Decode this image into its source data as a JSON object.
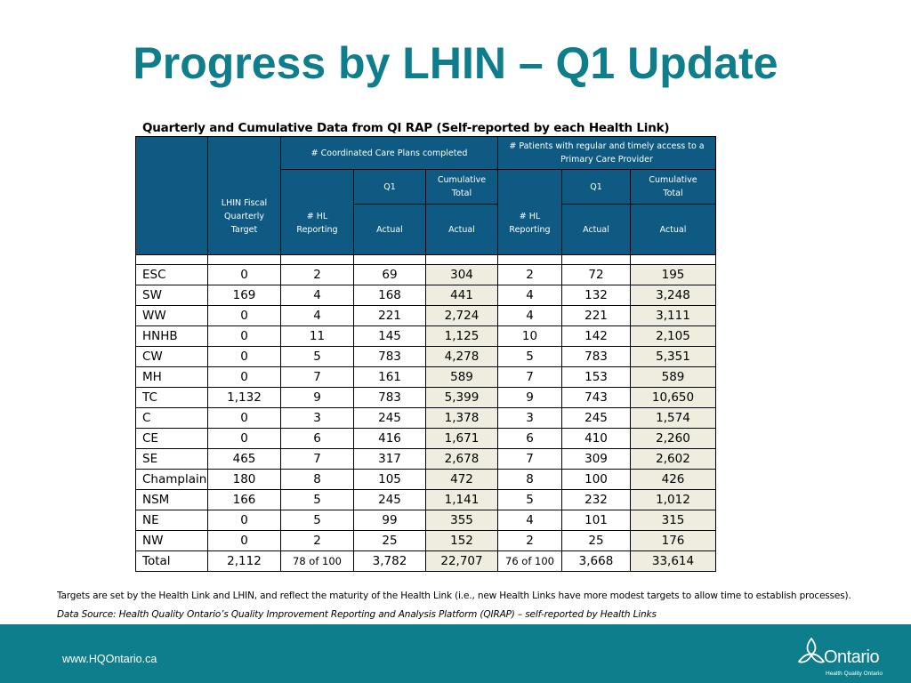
{
  "title": "Progress by LHIN – Q1 Update",
  "caption": "Quarterly and Cumulative Data from QI RAP (Self-reported by each Health Link)",
  "header": {
    "group_ccp": "# Coordinated Care Plans completed",
    "group_patients_1": "# Patients with regular and timely access to a",
    "group_patients_2": "Primary Care Provider",
    "target_1": "LHIN Fiscal",
    "target_2": "Quarterly",
    "target_3": "Target",
    "hl_1": "# HL",
    "hl_2": "Reporting",
    "q1": "Q1",
    "cum_1": "Cumulative",
    "cum_2": "Total",
    "actual": "Actual"
  },
  "rows": [
    {
      "name": "ESC",
      "target": "0",
      "hl1": "2",
      "q1a": "69",
      "cum1": "304",
      "hl2": "2",
      "q1b": "72",
      "cum2": "195"
    },
    {
      "name": "SW",
      "target": "169",
      "hl1": "4",
      "q1a": "168",
      "cum1": "441",
      "hl2": "4",
      "q1b": "132",
      "cum2": "3,248"
    },
    {
      "name": "WW",
      "target": "0",
      "hl1": "4",
      "q1a": "221",
      "cum1": "2,724",
      "hl2": "4",
      "q1b": "221",
      "cum2": "3,111"
    },
    {
      "name": "HNHB",
      "target": "0",
      "hl1": "11",
      "q1a": "145",
      "cum1": "1,125",
      "hl2": "10",
      "q1b": "142",
      "cum2": "2,105"
    },
    {
      "name": "CW",
      "target": "0",
      "hl1": "5",
      "q1a": "783",
      "cum1": "4,278",
      "hl2": "5",
      "q1b": "783",
      "cum2": "5,351"
    },
    {
      "name": "MH",
      "target": "0",
      "hl1": "7",
      "q1a": "161",
      "cum1": "589",
      "hl2": "7",
      "q1b": "153",
      "cum2": "589"
    },
    {
      "name": "TC",
      "target": "1,132",
      "hl1": "9",
      "q1a": "783",
      "cum1": "5,399",
      "hl2": "9",
      "q1b": "743",
      "cum2": "10,650"
    },
    {
      "name": "C",
      "target": "0",
      "hl1": "3",
      "q1a": "245",
      "cum1": "1,378",
      "hl2": "3",
      "q1b": "245",
      "cum2": "1,574"
    },
    {
      "name": "CE",
      "target": "0",
      "hl1": "6",
      "q1a": "416",
      "cum1": "1,671",
      "hl2": "6",
      "q1b": "410",
      "cum2": "2,260"
    },
    {
      "name": "SE",
      "target": "465",
      "hl1": "7",
      "q1a": "317",
      "cum1": "2,678",
      "hl2": "7",
      "q1b": "309",
      "cum2": "2,602"
    },
    {
      "name": "Champlain",
      "target": "180",
      "hl1": "8",
      "q1a": "105",
      "cum1": "472",
      "hl2": "8",
      "q1b": "100",
      "cum2": "426"
    },
    {
      "name": "NSM",
      "target": "166",
      "hl1": "5",
      "q1a": "245",
      "cum1": "1,141",
      "hl2": "5",
      "q1b": "232",
      "cum2": "1,012"
    },
    {
      "name": "NE",
      "target": "0",
      "hl1": "5",
      "q1a": "99",
      "cum1": "355",
      "hl2": "4",
      "q1b": "101",
      "cum2": "315"
    },
    {
      "name": "NW",
      "target": "0",
      "hl1": "2",
      "q1a": "25",
      "cum1": "152",
      "hl2": "2",
      "q1b": "25",
      "cum2": "176"
    },
    {
      "name": "Total",
      "target": "2,112",
      "hl1": "78 of 100",
      "q1a": "3,782",
      "cum1": "22,707",
      "hl2": "76 of 100",
      "q1b": "3,668",
      "cum2": "33,614"
    }
  ],
  "note": "Targets are set by the Health Link and LHIN, and reflect the maturity of the Health Link (i.e., new Health Links have more modest targets to allow time to establish processes).",
  "source": "Data Source:  Health Quality Ontario’s Quality Improvement Reporting and Analysis Platform (QIRAP) – self-reported by Health Links",
  "footer": {
    "url": "www.HQOntario.ca",
    "logo_word": "Ontario",
    "logo_sub": "Health Quality Ontario"
  },
  "colors": {
    "accent": "#0e7d8c",
    "header_fill": "#0e5a82",
    "shade": "#eeede0"
  }
}
